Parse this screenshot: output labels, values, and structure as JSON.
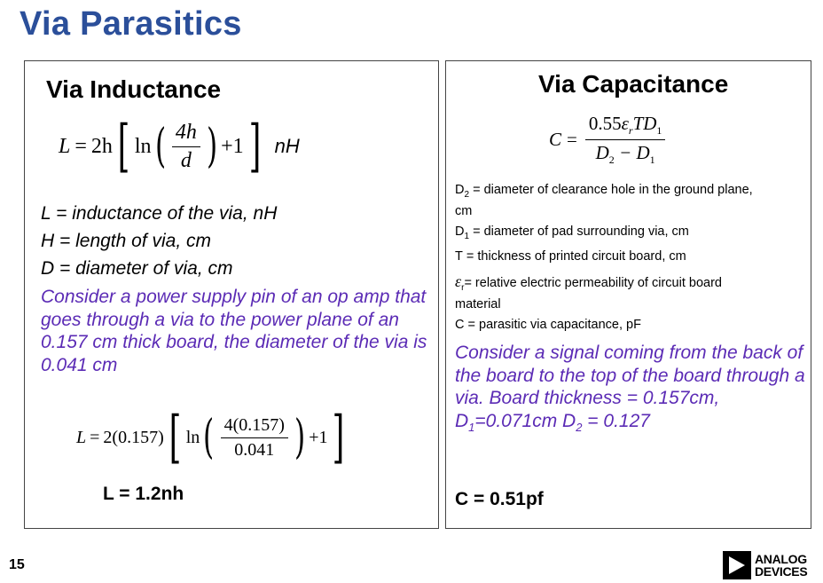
{
  "slide": {
    "title": "Via Parasitics",
    "page_number": "15"
  },
  "left": {
    "heading": "Via Inductance",
    "formula": {
      "lhs": "L",
      "coef": "2h",
      "ln": "ln",
      "num": "4h",
      "den": "d",
      "plus": "+1",
      "unit": "nH"
    },
    "definitions": [
      "L = inductance of the via, nH",
      "H = length of via, cm",
      "D = diameter of via, cm"
    ],
    "example": "Consider a power supply pin of an op amp that goes through a via to the power plane of an 0.157 cm thick board, the diameter of the via is 0.041 cm",
    "calc": {
      "lhs": "L",
      "coef": "2(0.157)",
      "ln": "ln",
      "num": "4(0.157)",
      "den": "0.041",
      "plus": "+1"
    },
    "result": "L = 1.2nh"
  },
  "right": {
    "heading": "Via Capacitance",
    "formula": {
      "lhs": "C",
      "num": "0.55",
      "eps": "ε",
      "r": "r",
      "td": "TD",
      "one": "1",
      "d2": "D",
      "two": "2",
      "minus": "− D",
      "one_b": "1"
    },
    "definitions": [
      {
        "sym": "D",
        "sub": "2",
        "text": " = diameter of clearance hole in the ground plane, cm"
      },
      {
        "sym": "D",
        "sub": "1",
        "text": " = diameter of pad surrounding via, cm"
      },
      {
        "sym": "T",
        "sub": "",
        "text": " = thickness of printed circuit board, cm"
      },
      {
        "sym": "ε",
        "sub": "r",
        "text": "= relative electric permeability of circuit board material"
      },
      {
        "sym": "C",
        "sub": "",
        "text": " = parasitic via capacitance, pF"
      }
    ],
    "example": {
      "line1": "Consider a signal coming from the back of the board to the top of the board through a via. Board thickness = 0.157cm,",
      "d1": "D",
      "d1_sub": "1",
      "d1_val": "=0.071cm D",
      "d2_sub": "2",
      "d2_val": " = 0.127"
    },
    "result": "C = 0.51pf"
  },
  "logo": {
    "line1": "ANALOG",
    "line2": "DEVICES"
  },
  "colors": {
    "title": "#2b4f9a",
    "example_text": "#5b2bb5"
  }
}
